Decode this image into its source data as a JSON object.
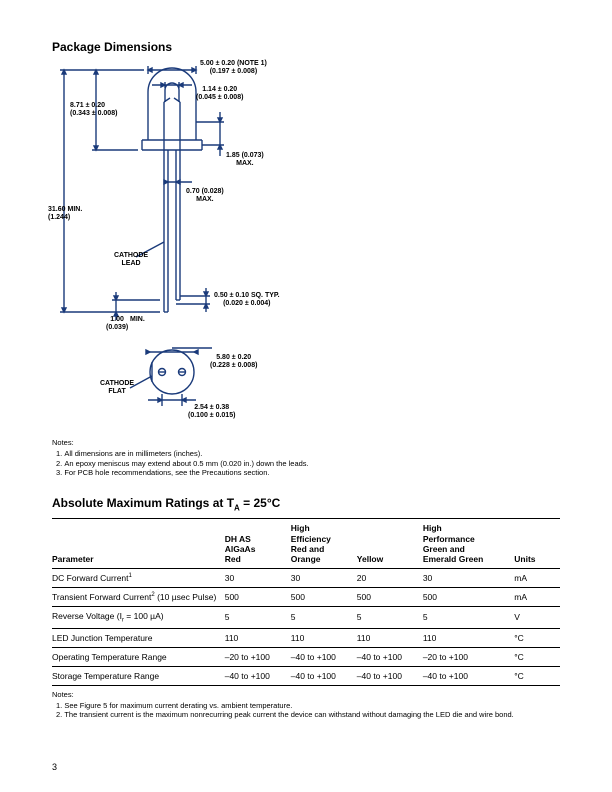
{
  "package_dimensions": {
    "title": "Package Dimensions",
    "dims": {
      "top_width": {
        "mm": "5.00 ± 0.20",
        "in": "(0.197 ± 0.008)",
        "note": "(NOTE 1)"
      },
      "top_inner": {
        "mm": "1.14 ± 0.20",
        "in": "(0.045 ± 0.008)"
      },
      "body_height": {
        "mm": "8.71 ± 0.20",
        "in": "(0.343 ± 0.008)"
      },
      "flange_r": {
        "mm": "1.85 (0.073)",
        "in": "MAX."
      },
      "lead_sep": {
        "mm": "0.70 (0.028)",
        "in": "MAX."
      },
      "overall_h": {
        "mm": "31.60",
        "in": "(1.244)",
        "suffix": "MIN."
      },
      "lead_gap": {
        "mm": "1.00",
        "in": "(0.039)",
        "suffix": "MIN."
      },
      "lead_sq": {
        "mm": "0.50 ± 0.10",
        "in": "(0.020 ± 0.004)",
        "suffix": "SQ. TYP."
      },
      "bottom_dia": {
        "mm": "5.80 ± 0.20",
        "in": "(0.228 ± 0.008)"
      },
      "pin_pitch": {
        "mm": "2.54 ± 0.38",
        "in": "(0.100 ± 0.015)"
      }
    },
    "labels": {
      "cathode_lead": "CATHODE\nLEAD",
      "cathode_flat": "CATHODE\nFLAT"
    },
    "notes_title": "Notes:",
    "notes": [
      "All dimensions are in millimeters (inches).",
      "An epoxy meniscus may extend about 0.5 mm (0.020 in.) down the leads.",
      "For PCB hole recommendations, see the Precautions section."
    ]
  },
  "ratings": {
    "title": "Absolute Maximum Ratings at T",
    "title_sub": "A",
    "title_cond": " = 25°C",
    "columns": [
      "Parameter",
      "DH AS\nAlGaAs\nRed",
      "High\nEfficiency\nRed and\nOrange",
      "Yellow",
      "High\nPerformance\nGreen and\nEmerald Green",
      "Units"
    ],
    "rows": [
      {
        "p": "DC Forward Current",
        "sup": "1",
        "v": [
          "30",
          "30",
          "20",
          "30",
          "mA"
        ]
      },
      {
        "p": "Transient Forward Current",
        "sup": "2",
        "p2": " (10 µsec Pulse)",
        "v": [
          "500",
          "500",
          "500",
          "500",
          "mA"
        ]
      },
      {
        "p": "Reverse Voltage (I",
        "sub": "r",
        "p2": " = 100 µA)",
        "v": [
          "5",
          "5",
          "5",
          "5",
          "V"
        ]
      },
      {
        "p": "LED Junction Temperature",
        "v": [
          "110",
          "110",
          "110",
          "110",
          "°C"
        ]
      },
      {
        "p": "Operating Temperature Range",
        "v": [
          "–20 to +100",
          "–40 to +100",
          "–40 to +100",
          "–20 to +100",
          "°C"
        ]
      },
      {
        "p": "Storage Temperature Range",
        "v": [
          "–40 to +100",
          "–40 to +100",
          "–40 to +100",
          "–40 to +100",
          "°C"
        ]
      }
    ],
    "notes_title": "Notes:",
    "notes": [
      "See Figure 5 for maximum current derating vs. ambient temperature.",
      "The transient current is the maximum nonrecurring peak current the device can withstand without damaging the LED die and wire bond."
    ]
  },
  "page_number": "3",
  "colors": {
    "stroke": "#1a3a7a",
    "text": "#000000",
    "bg": "#ffffff"
  }
}
